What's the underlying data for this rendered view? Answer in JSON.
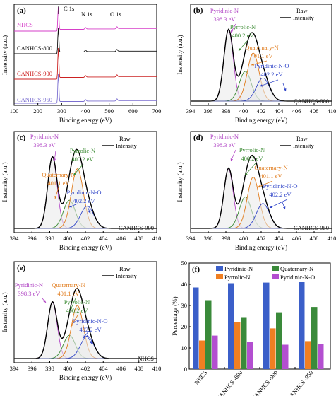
{
  "panels": {
    "a": {
      "tag": "(a)",
      "xlabel": "Binding energy (eV)",
      "ylabel": "Instensity (a.u.)",
      "xticks": [
        "100",
        "200",
        "300",
        "400",
        "500",
        "600",
        "700"
      ],
      "peaks": [
        "C 1s",
        "N 1s",
        "O 1s"
      ],
      "samples": [
        {
          "label": "NHCS",
          "color": "#d63fc8"
        },
        {
          "label": "CANHCS-800",
          "color": "#111111"
        },
        {
          "label": "CANHCS-900",
          "color": "#cc2222"
        },
        {
          "label": "CANHCS-950",
          "color": "#7b6fd0"
        }
      ]
    },
    "b": {
      "tag": "(b)",
      "sample": "CANHCS-800",
      "xlabel": "Binding energy (eV)",
      "ylabel": "Instensity (a.u.)",
      "legend_raw": "Raw",
      "legend_intensity": "Intensity"
    },
    "c": {
      "tag": "(c)",
      "sample": "CANHCS-900",
      "xlabel": "Binding energy (eV)",
      "ylabel": "Instensity (a.u.)",
      "legend_raw": "Raw",
      "legend_intensity": "Intensity"
    },
    "d": {
      "tag": "(d)",
      "sample": "CANHCS-950",
      "xlabel": "Binding energy (eV)",
      "ylabel": "Instensity (a.u.)",
      "legend_raw": "Raw",
      "legend_intensity": "Intensity"
    },
    "e": {
      "tag": "(e)",
      "sample": "NHCS",
      "xlabel": "Binding energy (eV)",
      "ylabel": "Instensity (a.u.)",
      "legend_raw": "Raw",
      "legend_intensity": "Intensity"
    },
    "f": {
      "tag": "(f)",
      "ylabel": "Percentage (%)",
      "yticks": [
        "0",
        "10",
        "20",
        "30",
        "40",
        "50"
      ],
      "legend": [
        "Pyridinic-N",
        "Quaternary-N",
        "Pyrrolic-N",
        "Pyridinic-N-O"
      ]
    }
  },
  "xps_xticks": [
    "394",
    "396",
    "398",
    "400",
    "402",
    "404",
    "406",
    "408",
    "410"
  ],
  "components": [
    {
      "name": "Pyridinic-N",
      "energy": "398.3 eV",
      "color": "#b044c4"
    },
    {
      "name": "Pyrrolic-N",
      "energy": "400.2 eV",
      "color": "#3a8a32"
    },
    {
      "name": "Quaternary-N",
      "energy": "401.1 eV",
      "color": "#e07a1a"
    },
    {
      "name": "Pyridinic-N-O",
      "energy": "402.2 eV",
      "color": "#3045c8"
    }
  ],
  "chart_data": [
    {
      "type": "line",
      "panel": "a",
      "title": "",
      "xlabel": "Binding energy (eV)",
      "ylabel": "Instensity (a.u.)",
      "xlim": [
        100,
        700
      ],
      "series": [
        {
          "name": "NHCS"
        },
        {
          "name": "CANHCS-800"
        },
        {
          "name": "CANHCS-900"
        },
        {
          "name": "CANHCS-950"
        }
      ],
      "annotations": [
        {
          "text": "C 1s",
          "x": 285
        },
        {
          "text": "N 1s",
          "x": 400
        },
        {
          "text": "O 1s",
          "x": 532
        }
      ]
    },
    {
      "type": "line",
      "panel": "b",
      "sample": "CANHCS-800",
      "xlabel": "Binding energy (eV)",
      "ylabel": "Instensity (a.u.)",
      "xlim": [
        394,
        410
      ],
      "components": [
        {
          "name": "Pyridinic-N",
          "center": 398.3,
          "height": 0.86
        },
        {
          "name": "Pyrrolic-N",
          "center": 400.2,
          "height": 0.36
        },
        {
          "name": "Quaternary-N",
          "center": 401.1,
          "height": 0.58
        },
        {
          "name": "Pyridinic-N-O",
          "center": 402.2,
          "height": 0.28
        }
      ]
    },
    {
      "type": "line",
      "panel": "c",
      "sample": "CANHCS-900",
      "xlabel": "Binding energy (eV)",
      "ylabel": "Instensity (a.u.)",
      "xlim": [
        394,
        410
      ],
      "components": [
        {
          "name": "Pyridinic-N",
          "center": 398.3,
          "height": 0.86
        },
        {
          "name": "Pyrrolic-N",
          "center": 400.2,
          "height": 0.34
        },
        {
          "name": "Quaternary-N",
          "center": 401.1,
          "height": 0.72
        },
        {
          "name": "Pyridinic-N-O",
          "center": 402.2,
          "height": 0.27
        }
      ]
    },
    {
      "type": "line",
      "panel": "d",
      "sample": "CANHCS-950",
      "xlabel": "Binding energy (eV)",
      "ylabel": "Instensity (a.u.)",
      "xlim": [
        394,
        410
      ],
      "components": [
        {
          "name": "Pyridinic-N",
          "center": 398.3,
          "height": 0.72
        },
        {
          "name": "Pyrrolic-N",
          "center": 400.2,
          "height": 0.38
        },
        {
          "name": "Quaternary-N",
          "center": 401.1,
          "height": 0.62
        },
        {
          "name": "Pyridinic-N-O",
          "center": 402.2,
          "height": 0.3
        }
      ]
    },
    {
      "type": "line",
      "panel": "e",
      "sample": "NHCS",
      "xlabel": "Binding energy (eV)",
      "ylabel": "Instensity (a.u.)",
      "xlim": [
        394,
        410
      ],
      "components": [
        {
          "name": "Pyridinic-N",
          "center": 398.3,
          "height": 0.68
        },
        {
          "name": "Pyrrolic-N",
          "center": 400.2,
          "height": 0.28
        },
        {
          "name": "Quaternary-N",
          "center": 401.1,
          "height": 0.64
        },
        {
          "name": "Pyridinic-N-O",
          "center": 402.2,
          "height": 0.27
        }
      ]
    },
    {
      "type": "bar",
      "panel": "f",
      "ylabel": "Percentage (%)",
      "ylim": [
        0,
        50
      ],
      "categories": [
        "NHCS",
        "CANHCS -800",
        "CANHCS -900",
        "CANHCS -950"
      ],
      "series": [
        {
          "name": "Pyridinic-N",
          "color": "#3b5fc9",
          "values": [
            38.5,
            40.5,
            40.8,
            41
          ]
        },
        {
          "name": "Quaternary-N",
          "color": "#3a8a3a",
          "values": [
            32.5,
            24.5,
            26.8,
            29.3
          ]
        },
        {
          "name": "Pyrrolic-N",
          "color": "#f07f22",
          "values": [
            13.5,
            22,
            19.2,
            13.2
          ]
        },
        {
          "name": "Pyridinic-N-O",
          "color": "#b34fd0",
          "values": [
            15.8,
            12.8,
            11.5,
            11.8
          ]
        }
      ]
    }
  ]
}
